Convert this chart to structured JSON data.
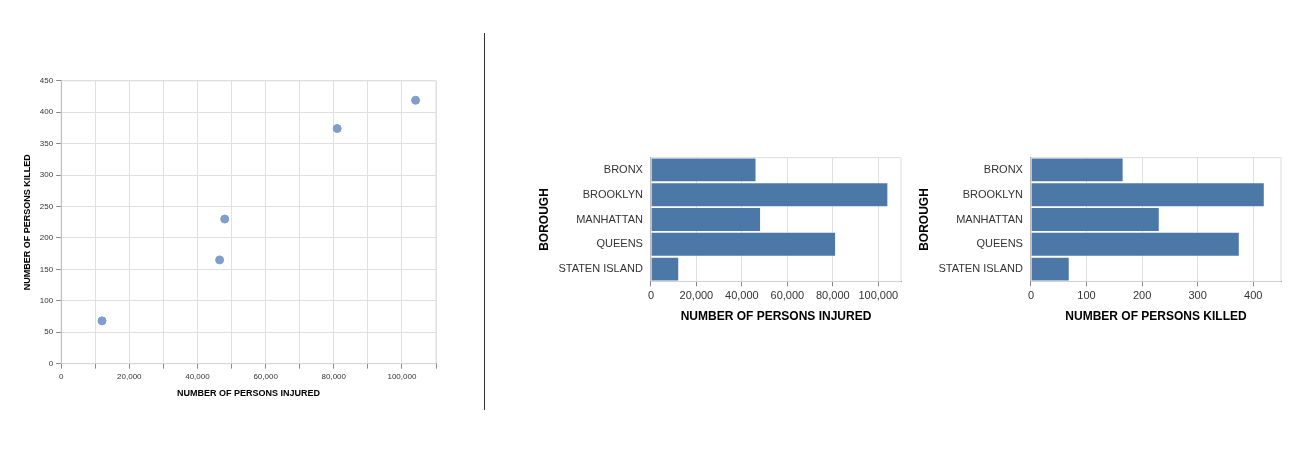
{
  "chart_data": [
    {
      "type": "scatter",
      "xlabel": "NUMBER OF PERSONS INJURED",
      "ylabel": "NUMBER OF PERSONS KILLED",
      "x": [
        12000,
        46500,
        48000,
        81000,
        104000
      ],
      "values": [
        68,
        165,
        230,
        374,
        419
      ],
      "color": "#7f9fc8",
      "marker": "circle",
      "xlim": [
        0,
        110000
      ],
      "xticks": [
        0,
        {
          "value": 10000,
          "label": null
        },
        {
          "value": 20000,
          "label": "20,000"
        },
        {
          "value": 30000,
          "label": null
        },
        {
          "value": 40000,
          "label": "40,000"
        },
        {
          "value": 50000,
          "label": null
        },
        {
          "value": 60000,
          "label": "60,000"
        },
        {
          "value": 70000,
          "label": null
        },
        {
          "value": 80000,
          "label": "80,000"
        },
        {
          "value": 90000,
          "label": null
        },
        {
          "value": 100000,
          "label": "100,000"
        },
        {
          "value": 110000,
          "label": null
        }
      ],
      "ylim": [
        0,
        450
      ],
      "yticks": [
        0,
        50,
        100,
        150,
        200,
        250,
        300,
        350,
        400,
        450
      ],
      "grid": true
    },
    {
      "type": "bar",
      "orientation": "horizontal",
      "xlabel": "NUMBER OF PERSONS INJURED",
      "ylabel": "BOROUGH",
      "categories": [
        "BRONX",
        "BROOKLYN",
        "MANHATTAN",
        "QUEENS",
        "STATEN ISLAND"
      ],
      "values": [
        46000,
        104000,
        48000,
        81000,
        12000
      ],
      "color": "#4c78a8",
      "xlim": [
        0,
        110000
      ],
      "xticks": [
        0,
        {
          "value": 20000,
          "label": "20,000"
        },
        {
          "value": 40000,
          "label": "40,000"
        },
        {
          "value": 60000,
          "label": "60,000"
        },
        {
          "value": 80000,
          "label": "80,000"
        },
        {
          "value": 100000,
          "label": "100,000"
        }
      ],
      "grid": "x"
    },
    {
      "type": "bar",
      "orientation": "horizontal",
      "xlabel": "NUMBER OF PERSONS KILLED",
      "ylabel": "BOROUGH",
      "categories": [
        "BRONX",
        "BROOKLYN",
        "MANHATTAN",
        "QUEENS",
        "STATEN ISLAND"
      ],
      "values": [
        165,
        419,
        230,
        374,
        68
      ],
      "color": "#4c78a8",
      "xlim": [
        0,
        450
      ],
      "xticks": [
        0,
        100,
        200,
        300,
        400
      ],
      "grid": "x"
    }
  ]
}
